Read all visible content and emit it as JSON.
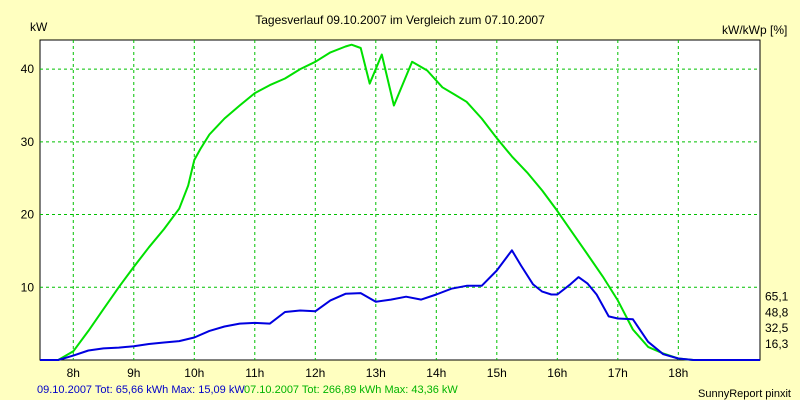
{
  "chart_data": {
    "type": "line",
    "title": "Tagesverlauf 09.10.2007 im Vergleich zum 07.10.2007",
    "ylabel_left": "kW",
    "ylabel_right": "kW/kWp [%]",
    "ylim": [
      0,
      44
    ],
    "xlim": [
      7.45,
      19.35
    ],
    "y_ticks": [
      10,
      20,
      30,
      40
    ],
    "y_tick_labels": [
      "10",
      "20",
      "30",
      "40"
    ],
    "y2_ticks": [
      2.19,
      4.37,
      6.56,
      8.75
    ],
    "y2_tick_labels": [
      "16,3",
      "32,5",
      "48,8",
      "65,1"
    ],
    "x_ticks": [
      8,
      9,
      10,
      11,
      12,
      13,
      14,
      15,
      16,
      17,
      18
    ],
    "x_tick_labels": [
      "8h",
      "9h",
      "10h",
      "11h",
      "12h",
      "13h",
      "14h",
      "15h",
      "16h",
      "17h",
      "18h"
    ],
    "grid": true,
    "series": [
      {
        "name": "07.10.2007",
        "color": "#00e000",
        "x": [
          7.45,
          7.75,
          8.0,
          8.25,
          8.5,
          8.75,
          9.0,
          9.25,
          9.5,
          9.75,
          9.9,
          10.0,
          10.1,
          10.25,
          10.5,
          10.75,
          11.0,
          11.25,
          11.5,
          11.75,
          12.0,
          12.25,
          12.5,
          12.6,
          12.75,
          12.9,
          13.1,
          13.3,
          13.6,
          13.85,
          14.1,
          14.3,
          14.5,
          14.75,
          15.0,
          15.25,
          15.5,
          15.75,
          16.0,
          16.25,
          16.5,
          16.75,
          17.0,
          17.25,
          17.5,
          17.75,
          18.0,
          18.25,
          18.5,
          18.75,
          19.35
        ],
        "values": [
          0,
          0,
          1.2,
          4.0,
          7.0,
          10.0,
          12.8,
          15.5,
          18.0,
          20.8,
          24.0,
          27.5,
          29.0,
          31.0,
          33.2,
          35.0,
          36.7,
          37.8,
          38.7,
          40.0,
          41.0,
          42.3,
          43.1,
          43.36,
          42.9,
          38.0,
          42.0,
          35.0,
          41.0,
          39.8,
          37.5,
          36.5,
          35.5,
          33.2,
          30.5,
          28.0,
          25.8,
          23.3,
          20.5,
          17.5,
          14.5,
          11.5,
          8.2,
          4.2,
          1.8,
          0.9,
          0.2,
          0,
          0,
          0,
          0
        ]
      },
      {
        "name": "09.10.2007",
        "color": "#0000e0",
        "x": [
          7.45,
          7.75,
          8.0,
          8.25,
          8.5,
          8.75,
          9.0,
          9.25,
          9.5,
          9.75,
          10.0,
          10.25,
          10.5,
          10.75,
          11.0,
          11.25,
          11.5,
          11.75,
          12.0,
          12.25,
          12.5,
          12.75,
          13.0,
          13.25,
          13.5,
          13.75,
          14.0,
          14.25,
          14.5,
          14.75,
          15.0,
          15.25,
          15.4,
          15.6,
          15.75,
          15.9,
          16.0,
          16.2,
          16.35,
          16.5,
          16.65,
          16.85,
          17.0,
          17.25,
          17.5,
          17.75,
          18.0,
          18.25,
          18.5,
          18.75,
          19.35
        ],
        "values": [
          0,
          0,
          0.6,
          1.3,
          1.6,
          1.7,
          1.9,
          2.2,
          2.4,
          2.6,
          3.1,
          4.0,
          4.6,
          5.0,
          5.1,
          5.0,
          6.6,
          6.8,
          6.7,
          8.2,
          9.1,
          9.2,
          8.0,
          8.3,
          8.7,
          8.3,
          9.0,
          9.8,
          10.2,
          10.2,
          12.3,
          15.09,
          13.0,
          10.4,
          9.4,
          9.0,
          9.0,
          10.3,
          11.4,
          10.5,
          9.0,
          6.0,
          5.7,
          5.6,
          2.5,
          0.8,
          0.2,
          0,
          0,
          0,
          0
        ]
      }
    ],
    "footer": {
      "blue": "09.10.2007 Tot: 65,66 kWh Max: 15,09 kW",
      "green": "07.10.2007 Tot: 266,89 kWh Max: 43,36 kW",
      "brand": "SunnyReport pinxit"
    },
    "colors": {
      "background": "#ffffc0",
      "plot_background": "#ffffff",
      "grid": "#00c000",
      "series_green": "#00e000",
      "series_blue": "#0000e0"
    }
  }
}
